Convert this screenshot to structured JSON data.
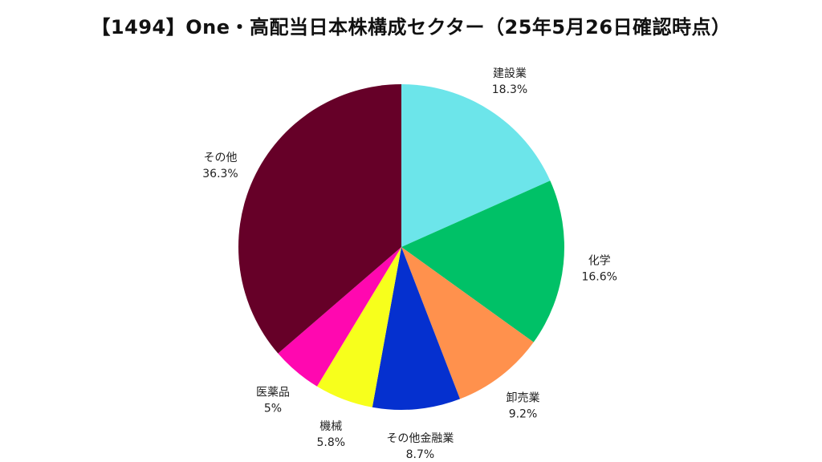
{
  "chart_data": {
    "type": "pie",
    "title": "【1494】One・高配当日本株構成セクター（25年5月26日確認時点）",
    "start_angle": "12 o'clock",
    "direction": "clockwise",
    "slices": [
      {
        "name": "建設業",
        "value": 18.3,
        "label": "18.3%",
        "color": "#6ce5ea"
      },
      {
        "name": "化学",
        "value": 16.6,
        "label": "16.6%",
        "color": "#00c167"
      },
      {
        "name": "卸売業",
        "value": 9.2,
        "label": "9.2%",
        "color": "#ff914d"
      },
      {
        "name": "その他金融業",
        "value": 8.7,
        "label": "8.7%",
        "color": "#0530cf"
      },
      {
        "name": "機械",
        "value": 5.8,
        "label": "5.8%",
        "color": "#f7ff1c"
      },
      {
        "name": "医薬品",
        "value": 5,
        "label": "5%",
        "color": "#ff08b0"
      },
      {
        "name": "その他",
        "value": 36.3,
        "label": "36.3%",
        "color": "#660028"
      }
    ]
  }
}
